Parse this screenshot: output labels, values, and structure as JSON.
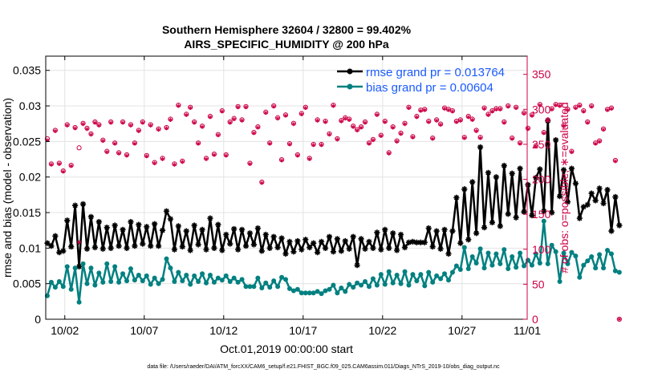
{
  "chart_data": {
    "type": "line",
    "title": "Southern Hemisphere 32604 / 32800 = 99.402%",
    "subtitle": "AIRS_SPECIFIC_HUMIDITY @ 200 hPa",
    "xlabel": "Oct.01,2019 00:00:00 start",
    "ylabel_left": "rmse and bias (model - observation)",
    "ylabel_right": "# of obs: o=possible; ∗=evaluated",
    "footer": "data file: /Users/raeder/DAI/ATM_forcXX/CAM6_setup/f.e21.FHIST_BGC.f09_025.CAM6assim.011/Diags_NTrS_2019-10/obs_diag_output.nc",
    "xlim": [
      0.8,
      31.1
    ],
    "ylim_left": [
      0,
      0.037
    ],
    "ylim_right": [
      0,
      376
    ],
    "x_ticks": [
      2,
      7,
      12,
      17,
      22,
      27,
      32
    ],
    "x_tick_labels": [
      "10/02",
      "10/07",
      "10/12",
      "10/17",
      "10/22",
      "10/27",
      "11/01"
    ],
    "y_ticks_left": [
      0,
      0.005,
      0.01,
      0.015,
      0.02,
      0.025,
      0.03,
      0.035
    ],
    "y_tick_labels_left": [
      "0",
      "0.005",
      "0.01",
      "0.015",
      "0.02",
      "0.025",
      "0.03",
      "0.035"
    ],
    "y_ticks_right": [
      0,
      50,
      100,
      150,
      200,
      250,
      300,
      350
    ],
    "y_tick_labels_right": [
      "0",
      "50",
      "100",
      "150",
      "200",
      "250",
      "300",
      "350"
    ],
    "legend_position": "top-right",
    "series": [
      {
        "name": "rmse grand pr = 0.013764",
        "color": "#000000",
        "axis": "left",
        "start": 0.9,
        "step": 0.25,
        "values": [
          0.0107,
          0.0103,
          0.0117,
          0.0094,
          0.0096,
          0.0139,
          0.0102,
          0.016,
          0.0074,
          0.0162,
          0.0099,
          0.0144,
          0.0101,
          0.0137,
          0.0099,
          0.0129,
          0.01,
          0.0132,
          0.0103,
          0.0126,
          0.01,
          0.0137,
          0.0103,
          0.0133,
          0.0106,
          0.013,
          0.0103,
          0.0134,
          0.0103,
          0.0125,
          0.0152,
          0.0141,
          0.0098,
          0.0131,
          0.0102,
          0.0124,
          0.0097,
          0.0132,
          0.0105,
          0.0126,
          0.0098,
          0.0142,
          0.01,
          0.0133,
          0.0097,
          0.0119,
          0.0106,
          0.0127,
          0.0098,
          0.0126,
          0.0103,
          0.0121,
          0.0105,
          0.0128,
          0.0096,
          0.0119,
          0.01,
          0.0116,
          0.0101,
          0.0114,
          0.0092,
          0.0109,
          0.0095,
          0.011,
          0.0098,
          0.0112,
          0.0101,
          0.0107,
          0.0094,
          0.0109,
          0.01,
          0.0116,
          0.0095,
          0.0113,
          0.0096,
          0.011,
          0.0099,
          0.0116,
          0.0076,
          0.0113,
          0.0099,
          0.0109,
          0.01,
          0.0122,
          0.0098,
          0.0126,
          0.01,
          0.0121,
          0.0097,
          0.0119,
          0.0101,
          0.0108,
          0.0109,
          0.0108,
          0.0108,
          0.0108,
          0.0128,
          0.0102,
          0.0124,
          0.0099,
          0.0126,
          0.0092,
          0.0124,
          0.0171,
          0.0107,
          0.0183,
          0.0112,
          0.0193,
          0.0121,
          0.0242,
          0.0129,
          0.0206,
          0.0136,
          0.02,
          0.0131,
          0.0216,
          0.0148,
          0.0205,
          0.0143,
          0.0212,
          0.0151,
          0.0189,
          0.0146,
          0.0199,
          0.0211,
          0.0152,
          0.0279,
          0.015,
          0.0252,
          0.0173,
          0.021,
          0.0165,
          0.0212,
          0.0191,
          0.0142,
          0.0158,
          0.0161,
          0.0177,
          0.0167,
          0.0184,
          0.0163,
          0.0182,
          0.0124,
          0.0172,
          0.0132
        ]
      },
      {
        "name": "bias grand pr = 0.00604",
        "color": "#008080",
        "axis": "left",
        "start": 0.9,
        "step": 0.25,
        "values": [
          0.0033,
          0.0052,
          0.0045,
          0.0053,
          0.0046,
          0.0074,
          0.0042,
          0.0072,
          0.0024,
          0.0078,
          0.005,
          0.0072,
          0.0048,
          0.0065,
          0.0052,
          0.0078,
          0.0053,
          0.0074,
          0.0052,
          0.0064,
          0.0054,
          0.0071,
          0.0055,
          0.0062,
          0.0054,
          0.0061,
          0.0049,
          0.0058,
          0.005,
          0.0056,
          0.0085,
          0.0072,
          0.0053,
          0.0066,
          0.0054,
          0.0062,
          0.0049,
          0.0061,
          0.0053,
          0.0064,
          0.0051,
          0.0062,
          0.0052,
          0.0058,
          0.0055,
          0.0061,
          0.0053,
          0.0058,
          0.0052,
          0.0056,
          0.0046,
          0.0046,
          0.0046,
          0.0058,
          0.0044,
          0.0051,
          0.0045,
          0.0054,
          0.0046,
          0.0059,
          0.0056,
          0.0043,
          0.004,
          0.0042,
          0.0037,
          0.0037,
          0.0037,
          0.0037,
          0.0039,
          0.0036,
          0.004,
          0.0042,
          0.0048,
          0.0037,
          0.0044,
          0.0039,
          0.0049,
          0.0045,
          0.0051,
          0.0048,
          0.0053,
          0.0046,
          0.0057,
          0.0048,
          0.0063,
          0.0049,
          0.0067,
          0.0051,
          0.0062,
          0.005,
          0.0067,
          0.0048,
          0.0063,
          0.0054,
          0.0063,
          0.0047,
          0.0066,
          0.0052,
          0.0061,
          0.0057,
          0.0064,
          0.0055,
          0.0066,
          0.0075,
          0.007,
          0.0101,
          0.0071,
          0.0088,
          0.0079,
          0.0099,
          0.0072,
          0.0093,
          0.0076,
          0.0092,
          0.0078,
          0.0098,
          0.0071,
          0.0088,
          0.0073,
          0.0093,
          0.0075,
          0.0083,
          0.0076,
          0.0092,
          0.0079,
          0.0138,
          0.0078,
          0.0104,
          0.0095,
          0.0053,
          0.0093,
          0.0078,
          0.0094,
          0.0089,
          0.0059,
          0.0076,
          0.0082,
          0.0088,
          0.0072,
          0.0091,
          0.0072,
          0.0097,
          0.0092,
          0.0068,
          0.0066
        ]
      },
      {
        "name": "# of obs possible",
        "color": "#cc0044",
        "axis": "right",
        "marker": "o",
        "start": 0.9,
        "step": 0.25,
        "values": [
          258,
          222,
          270,
          223,
          212,
          278,
          220,
          274,
          245,
          280,
          273,
          265,
          282,
          278,
          256,
          240,
          282,
          252,
          238,
          282,
          235,
          278,
          252,
          270,
          282,
          234,
          278,
          224,
          272,
          230,
          274,
          286,
          222,
          306,
          226,
          293,
          303,
          282,
          252,
          276,
          230,
          290,
          236,
          264,
          298,
          235,
          282,
          287,
          304,
          285,
          304,
          223,
          267,
          275,
          196,
          296,
          252,
          305,
          288,
          228,
          292,
          251,
          280,
          235,
          294,
          303,
          230,
          250,
          285,
          250,
          283,
          265,
          306,
          258,
          284,
          288,
          286,
          276,
          271,
          275,
          282,
          252,
          257,
          293,
          263,
          283,
          238,
          275,
          255,
          266,
          280,
          303,
          261,
          290,
          299,
          300,
          283,
          259,
          285,
          279,
          302,
          300,
          298,
          283,
          285,
          260,
          290,
          286,
          270,
          260,
          302,
          293,
          298,
          301,
          301,
          282,
          305,
          259,
          303,
          252,
          295,
          273,
          292,
          248,
          307,
          267,
          285,
          301,
          307,
          306,
          277,
          300,
          240,
          303,
          306,
          298,
          282,
          305,
          252,
          255,
          272,
          300,
          302,
          227,
          0
        ]
      },
      {
        "name": "# of obs evaluated",
        "color": "#cc0044",
        "axis": "right",
        "marker": "*",
        "start": 0.9,
        "step": 0.25,
        "values": [
          256,
          221,
          269,
          222,
          211,
          277,
          219,
          273,
          110,
          279,
          272,
          264,
          281,
          277,
          255,
          239,
          281,
          251,
          237,
          281,
          234,
          277,
          251,
          269,
          281,
          233,
          277,
          223,
          271,
          229,
          273,
          285,
          221,
          305,
          225,
          292,
          302,
          281,
          251,
          275,
          229,
          289,
          235,
          263,
          297,
          234,
          281,
          286,
          303,
          284,
          303,
          222,
          266,
          274,
          195,
          295,
          251,
          304,
          287,
          227,
          291,
          250,
          279,
          234,
          293,
          302,
          229,
          249,
          284,
          249,
          282,
          264,
          305,
          257,
          283,
          287,
          285,
          275,
          270,
          274,
          281,
          251,
          256,
          292,
          262,
          282,
          237,
          274,
          254,
          265,
          279,
          302,
          260,
          289,
          298,
          299,
          282,
          258,
          284,
          278,
          301,
          299,
          297,
          282,
          284,
          259,
          289,
          285,
          269,
          259,
          301,
          292,
          297,
          300,
          300,
          281,
          304,
          258,
          302,
          251,
          294,
          272,
          291,
          247,
          306,
          266,
          284,
          300,
          306,
          305,
          276,
          299,
          239,
          302,
          305,
          297,
          281,
          304,
          251,
          254,
          271,
          299,
          301,
          226,
          0
        ]
      }
    ]
  }
}
